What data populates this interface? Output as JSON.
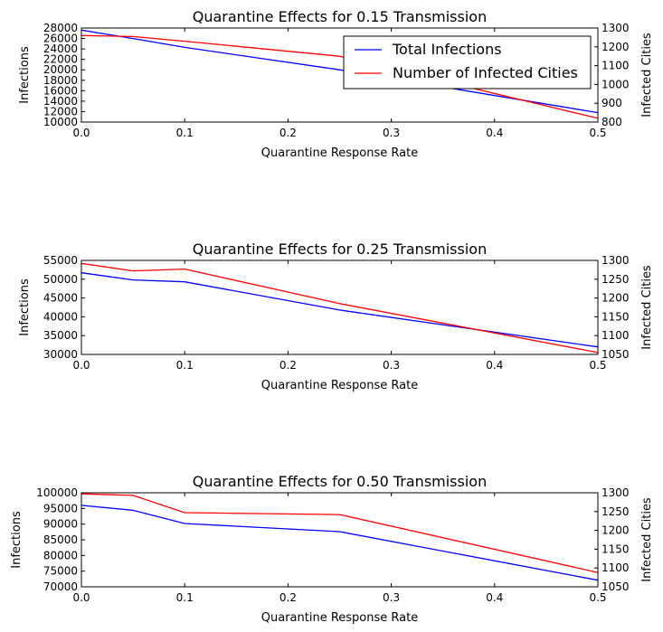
{
  "chart_data": [
    {
      "type": "line",
      "title": "Quarantine Effects for 0.15 Transmission",
      "xlabel": "Quarantine Response Rate",
      "ylabel": "Infections",
      "y2label": "Infected Cities",
      "xlim": [
        0.0,
        0.5
      ],
      "ylim": [
        10000,
        28000
      ],
      "y2lim": [
        800,
        1300
      ],
      "xticks": [
        "0.0",
        "0.1",
        "0.2",
        "0.3",
        "0.4",
        "0.5"
      ],
      "yticks": [
        "10000",
        "12000",
        "14000",
        "16000",
        "18000",
        "20000",
        "22000",
        "24000",
        "26000",
        "28000"
      ],
      "y2ticks": [
        "800",
        "900",
        "1000",
        "1100",
        "1200",
        "1300"
      ],
      "x": [
        0.0,
        0.05,
        0.1,
        0.25,
        0.5
      ],
      "series": [
        {
          "name": "Total Infections",
          "axis": "left",
          "color": "#0000ff",
          "values": [
            27600,
            26000,
            24300,
            20000,
            11800
          ]
        },
        {
          "name": "Number of Infected Cities",
          "axis": "right",
          "color": "#ff0000",
          "values": [
            1260,
            1255,
            1230,
            1150,
            820
          ]
        }
      ],
      "legend": "top-right",
      "grid": false
    },
    {
      "type": "line",
      "title": "Quarantine Effects for 0.25 Transmission",
      "xlabel": "Quarantine Response Rate",
      "ylabel": "Infections",
      "y2label": "Infected Cities",
      "xlim": [
        0.0,
        0.5
      ],
      "ylim": [
        30000,
        55000
      ],
      "y2lim": [
        1050,
        1300
      ],
      "xticks": [
        "0.0",
        "0.1",
        "0.2",
        "0.3",
        "0.4",
        "0.5"
      ],
      "yticks": [
        "30000",
        "35000",
        "40000",
        "45000",
        "50000",
        "55000"
      ],
      "y2ticks": [
        "1050",
        "1100",
        "1150",
        "1200",
        "1250",
        "1300"
      ],
      "x": [
        0.0,
        0.05,
        0.1,
        0.25,
        0.5
      ],
      "series": [
        {
          "name": "Total Infections",
          "axis": "left",
          "color": "#0000ff",
          "values": [
            51700,
            49800,
            49300,
            41800,
            32000
          ]
        },
        {
          "name": "Number of Infected Cities",
          "axis": "right",
          "color": "#ff0000",
          "values": [
            1292,
            1272,
            1277,
            1185,
            1055
          ]
        }
      ],
      "legend": "none",
      "grid": false
    },
    {
      "type": "line",
      "title": "Quarantine Effects for 0.50 Transmission",
      "xlabel": "Quarantine Response Rate",
      "ylabel": "Infections",
      "y2label": "Infected Cities",
      "xlim": [
        0.0,
        0.5
      ],
      "ylim": [
        70000,
        100000
      ],
      "y2lim": [
        1050,
        1300
      ],
      "xticks": [
        "0.0",
        "0.1",
        "0.2",
        "0.3",
        "0.4",
        "0.5"
      ],
      "yticks": [
        "70000",
        "75000",
        "80000",
        "85000",
        "90000",
        "95000",
        "100000"
      ],
      "y2ticks": [
        "1050",
        "1100",
        "1150",
        "1200",
        "1250",
        "1300"
      ],
      "x": [
        0.0,
        0.05,
        0.1,
        0.25,
        0.5
      ],
      "series": [
        {
          "name": "Total Infections",
          "axis": "left",
          "color": "#0000ff",
          "values": [
            96000,
            94400,
            90200,
            87600,
            72100
          ]
        },
        {
          "name": "Number of Infected Cities",
          "axis": "right",
          "color": "#ff0000",
          "values": [
            1297,
            1293,
            1247,
            1242,
            1088
          ]
        }
      ],
      "legend": "none",
      "grid": false
    }
  ]
}
